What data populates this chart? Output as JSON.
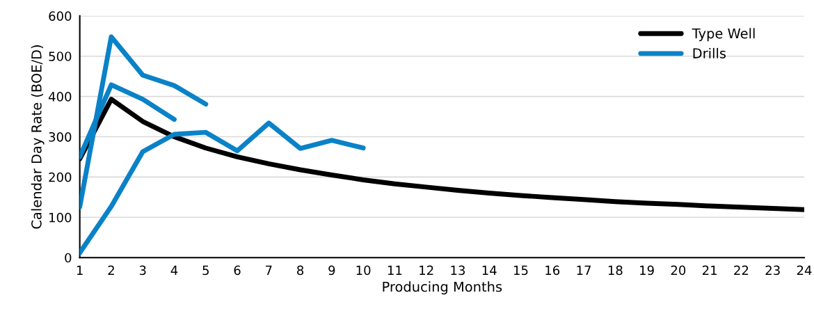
{
  "chart_data": {
    "type": "line",
    "xlabel": "Producing Months",
    "ylabel": "Calendar Day Rate (BOE/D)",
    "xlim": [
      1,
      24
    ],
    "xticks": [
      1,
      2,
      3,
      4,
      5,
      6,
      7,
      8,
      9,
      10,
      11,
      12,
      13,
      14,
      15,
      16,
      17,
      18,
      19,
      20,
      21,
      22,
      23,
      24
    ],
    "ylim": [
      0,
      600
    ],
    "yticks": [
      0,
      100,
      200,
      300,
      400,
      500,
      600
    ],
    "grid": "y",
    "legend": "top right",
    "marker": "none",
    "line_style": "solid",
    "series": [
      {
        "name": "Type Well",
        "color": "#000000",
        "x": [
          1,
          2,
          3,
          4,
          5,
          6,
          7,
          8,
          9,
          10,
          11,
          12,
          13,
          14,
          15,
          16,
          17,
          18,
          19,
          20,
          21,
          22,
          23,
          24
        ],
        "values": [
          245,
          393,
          338,
          300,
          272,
          250,
          233,
          218,
          205,
          193,
          183,
          175,
          167,
          160,
          154,
          149,
          144,
          139,
          135,
          132,
          128,
          125,
          122,
          119
        ]
      },
      {
        "name": "Drills",
        "color": "#0a82c8",
        "x": [
          1,
          2,
          3,
          4,
          5
        ],
        "values": [
          126,
          548,
          453,
          427,
          381
        ]
      },
      {
        "color": "#0a82c8",
        "x": [
          1,
          2,
          3,
          4
        ],
        "values": [
          250,
          429,
          393,
          343
        ]
      },
      {
        "color": "#0a82c8",
        "x": [
          1,
          2,
          3,
          4,
          5,
          6,
          7,
          8,
          9,
          10
        ],
        "values": [
          12,
          127,
          263,
          306,
          311,
          265,
          334,
          271,
          291,
          272
        ]
      }
    ]
  }
}
